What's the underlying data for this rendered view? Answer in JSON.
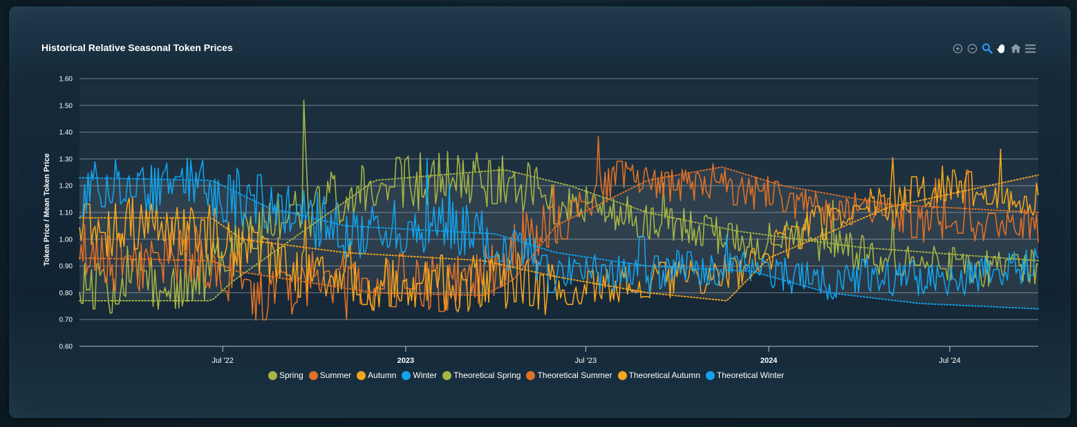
{
  "chart_title": "Historical Relative Seasonal Token Prices",
  "toolbar": {
    "icons": [
      "zoom-in-icon",
      "zoom-out-icon",
      "zoom-select-icon",
      "pan-icon",
      "home-icon",
      "menu-icon"
    ],
    "active_color": "#2e9bff",
    "inactive_color": "#8a9aa6"
  },
  "colors": {
    "spring": "#a6b545",
    "summer": "#e07126",
    "autumn": "#f2a51f",
    "winter": "#12a3ec"
  },
  "chart_data": {
    "type": "line",
    "title": "Historical Relative Seasonal Token Prices",
    "ylabel": "Token Price / Mean Token Price",
    "xlabel": "",
    "ylim": [
      0.6,
      1.6
    ],
    "yticks": [
      "1.60",
      "1.50",
      "1.40",
      "1.30",
      "1.20",
      "1.10",
      "1.00",
      "0.90",
      "0.80",
      "0.70",
      "0.60"
    ],
    "x_range": [
      "2022-02-07",
      "2024-09-28"
    ],
    "xticks": [
      {
        "label": "Jul '22",
        "date": "2022-07-01",
        "bold": false
      },
      {
        "label": "2023",
        "date": "2023-01-01",
        "bold": true
      },
      {
        "label": "Jul '23",
        "date": "2023-07-01",
        "bold": false
      },
      {
        "label": "2024",
        "date": "2024-01-01",
        "bold": true
      },
      {
        "label": "Jul '24",
        "date": "2024-07-01",
        "bold": false
      }
    ],
    "grid": true,
    "legend_position": "bottom",
    "series": [
      {
        "name": "Spring",
        "key": "spring",
        "style": "solid",
        "seed": 11,
        "points": [
          [
            "2022-02-07",
            0.86
          ],
          [
            "2022-03-01",
            0.8
          ],
          [
            "2022-04-01",
            0.88
          ],
          [
            "2022-05-01",
            0.82
          ],
          [
            "2022-06-01",
            0.85
          ],
          [
            "2022-07-01",
            0.92
          ],
          [
            "2022-08-01",
            1.02
          ],
          [
            "2022-09-01",
            1.08
          ],
          [
            "2022-10-01",
            1.12
          ],
          [
            "2022-11-01",
            1.18
          ],
          [
            "2022-12-01",
            1.17
          ],
          [
            "2023-01-01",
            1.21
          ],
          [
            "2023-02-01",
            1.22
          ],
          [
            "2023-03-01",
            1.24
          ],
          [
            "2023-04-01",
            1.21
          ],
          [
            "2023-05-01",
            1.2
          ],
          [
            "2023-06-01",
            1.14
          ],
          [
            "2023-07-01",
            1.13
          ],
          [
            "2023-08-01",
            1.1
          ],
          [
            "2023-09-01",
            1.06
          ],
          [
            "2023-10-01",
            1.05
          ],
          [
            "2023-11-01",
            1.03
          ],
          [
            "2023-12-01",
            0.99
          ],
          [
            "2024-01-01",
            0.99
          ],
          [
            "2024-02-01",
            1.03
          ],
          [
            "2024-03-01",
            0.97
          ],
          [
            "2024-04-01",
            0.95
          ],
          [
            "2024-05-01",
            0.93
          ],
          [
            "2024-06-01",
            0.92
          ],
          [
            "2024-07-01",
            0.9
          ],
          [
            "2024-08-01",
            0.89
          ],
          [
            "2024-09-28",
            0.9
          ]
        ]
      },
      {
        "name": "Summer",
        "key": "summer",
        "style": "solid",
        "seed": 23,
        "points": [
          [
            "2022-02-07",
            0.98
          ],
          [
            "2022-03-01",
            0.92
          ],
          [
            "2022-04-01",
            0.9
          ],
          [
            "2022-05-01",
            0.93
          ],
          [
            "2022-06-01",
            0.95
          ],
          [
            "2022-07-01",
            0.88
          ],
          [
            "2022-08-01",
            0.8
          ],
          [
            "2022-09-01",
            0.82
          ],
          [
            "2022-10-01",
            0.86
          ],
          [
            "2022-11-01",
            0.85
          ],
          [
            "2022-12-01",
            0.84
          ],
          [
            "2023-01-01",
            0.85
          ],
          [
            "2023-02-01",
            0.84
          ],
          [
            "2023-03-01",
            0.83
          ],
          [
            "2023-04-01",
            0.9
          ],
          [
            "2023-05-01",
            1.0
          ],
          [
            "2023-06-01",
            1.05
          ],
          [
            "2023-07-01",
            1.14
          ],
          [
            "2023-08-01",
            1.24
          ],
          [
            "2023-09-01",
            1.21
          ],
          [
            "2023-10-01",
            1.2
          ],
          [
            "2023-11-01",
            1.22
          ],
          [
            "2023-12-01",
            1.18
          ],
          [
            "2024-01-01",
            1.17
          ],
          [
            "2024-02-01",
            1.13
          ],
          [
            "2024-03-01",
            1.1
          ],
          [
            "2024-04-01",
            1.12
          ],
          [
            "2024-05-01",
            1.1
          ],
          [
            "2024-06-01",
            1.05
          ],
          [
            "2024-07-01",
            1.07
          ],
          [
            "2024-08-01",
            1.06
          ],
          [
            "2024-09-28",
            1.05
          ]
        ]
      },
      {
        "name": "Autumn",
        "key": "autumn",
        "style": "solid",
        "seed": 37,
        "points": [
          [
            "2022-02-07",
            1.1
          ],
          [
            "2022-03-01",
            1.04
          ],
          [
            "2022-04-01",
            1.06
          ],
          [
            "2022-05-01",
            1.03
          ],
          [
            "2022-06-01",
            1.05
          ],
          [
            "2022-07-01",
            1.0
          ],
          [
            "2022-08-01",
            0.94
          ],
          [
            "2022-09-01",
            0.9
          ],
          [
            "2022-10-01",
            0.86
          ],
          [
            "2022-11-01",
            0.85
          ],
          [
            "2022-12-01",
            0.84
          ],
          [
            "2023-01-01",
            0.86
          ],
          [
            "2023-02-01",
            0.84
          ],
          [
            "2023-03-01",
            0.82
          ],
          [
            "2023-04-01",
            0.85
          ],
          [
            "2023-05-01",
            0.84
          ],
          [
            "2023-06-01",
            0.82
          ],
          [
            "2023-07-01",
            0.83
          ],
          [
            "2023-08-01",
            0.82
          ],
          [
            "2023-09-01",
            0.84
          ],
          [
            "2023-10-01",
            0.85
          ],
          [
            "2023-11-01",
            0.86
          ],
          [
            "2023-12-01",
            0.88
          ],
          [
            "2024-01-01",
            0.95
          ],
          [
            "2024-02-01",
            1.02
          ],
          [
            "2024-03-01",
            1.08
          ],
          [
            "2024-04-01",
            1.12
          ],
          [
            "2024-05-01",
            1.14
          ],
          [
            "2024-06-01",
            1.18
          ],
          [
            "2024-07-01",
            1.2
          ],
          [
            "2024-08-01",
            1.19
          ],
          [
            "2024-09-28",
            1.15
          ]
        ]
      },
      {
        "name": "Winter",
        "key": "winter",
        "style": "solid",
        "seed": 53,
        "points": [
          [
            "2022-02-07",
            1.14
          ],
          [
            "2022-03-01",
            1.22
          ],
          [
            "2022-04-01",
            1.21
          ],
          [
            "2022-05-01",
            1.19
          ],
          [
            "2022-06-01",
            1.2
          ],
          [
            "2022-07-01",
            1.16
          ],
          [
            "2022-08-01",
            1.15
          ],
          [
            "2022-09-01",
            1.13
          ],
          [
            "2022-10-01",
            1.07
          ],
          [
            "2022-11-01",
            1.03
          ],
          [
            "2022-12-01",
            1.04
          ],
          [
            "2023-01-01",
            1.05
          ],
          [
            "2023-02-01",
            1.06
          ],
          [
            "2023-03-01",
            1.04
          ],
          [
            "2023-04-01",
            0.98
          ],
          [
            "2023-05-01",
            0.93
          ],
          [
            "2023-06-01",
            0.89
          ],
          [
            "2023-07-01",
            0.88
          ],
          [
            "2023-08-01",
            0.87
          ],
          [
            "2023-09-01",
            0.86
          ],
          [
            "2023-10-01",
            0.9
          ],
          [
            "2023-11-01",
            0.88
          ],
          [
            "2023-12-01",
            0.9
          ],
          [
            "2024-01-01",
            0.88
          ],
          [
            "2024-02-01",
            0.86
          ],
          [
            "2024-03-01",
            0.84
          ],
          [
            "2024-04-01",
            0.87
          ],
          [
            "2024-05-01",
            0.85
          ],
          [
            "2024-06-01",
            0.86
          ],
          [
            "2024-07-01",
            0.85
          ],
          [
            "2024-08-01",
            0.87
          ],
          [
            "2024-09-28",
            0.9
          ]
        ]
      },
      {
        "name": "Theoretical Spring",
        "key": "spring",
        "style": "dotted",
        "points": [
          [
            "2022-02-07",
            0.77
          ],
          [
            "2022-06-20",
            0.77
          ],
          [
            "2022-07-10",
            0.84
          ],
          [
            "2022-12-01",
            1.22
          ],
          [
            "2023-04-10",
            1.26
          ],
          [
            "2023-06-15",
            1.2
          ],
          [
            "2023-09-01",
            1.1
          ],
          [
            "2023-12-01",
            1.03
          ],
          [
            "2024-04-01",
            0.97
          ],
          [
            "2024-09-28",
            0.92
          ]
        ]
      },
      {
        "name": "Theoretical Summer",
        "key": "summer",
        "style": "dotted",
        "points": [
          [
            "2022-02-07",
            0.93
          ],
          [
            "2022-06-20",
            0.92
          ],
          [
            "2022-07-15",
            0.88
          ],
          [
            "2022-12-01",
            0.8
          ],
          [
            "2023-03-20",
            0.79
          ],
          [
            "2023-04-20",
            0.85
          ],
          [
            "2023-06-01",
            1.05
          ],
          [
            "2023-09-01",
            1.22
          ],
          [
            "2023-11-15",
            1.27
          ],
          [
            "2024-01-15",
            1.2
          ],
          [
            "2024-05-01",
            1.13
          ],
          [
            "2024-09-28",
            1.1
          ]
        ]
      },
      {
        "name": "Theoretical Autumn",
        "key": "autumn",
        "style": "dotted",
        "points": [
          [
            "2022-02-07",
            1.08
          ],
          [
            "2022-06-20",
            1.08
          ],
          [
            "2022-07-20",
            1.0
          ],
          [
            "2022-11-01",
            0.95
          ],
          [
            "2023-03-20",
            0.92
          ],
          [
            "2023-06-01",
            0.86
          ],
          [
            "2023-09-01",
            0.8
          ],
          [
            "2023-11-20",
            0.77
          ],
          [
            "2024-01-01",
            0.93
          ],
          [
            "2024-05-01",
            1.12
          ],
          [
            "2024-09-28",
            1.24
          ]
        ]
      },
      {
        "name": "Theoretical Winter",
        "key": "winter",
        "style": "dotted",
        "points": [
          [
            "2022-02-07",
            1.23
          ],
          [
            "2022-06-20",
            1.22
          ],
          [
            "2022-08-15",
            1.12
          ],
          [
            "2022-11-01",
            1.05
          ],
          [
            "2023-04-01",
            1.02
          ],
          [
            "2023-06-01",
            0.95
          ],
          [
            "2023-09-01",
            0.9
          ],
          [
            "2023-12-15",
            0.88
          ],
          [
            "2024-03-01",
            0.8
          ],
          [
            "2024-06-01",
            0.76
          ],
          [
            "2024-09-28",
            0.74
          ]
        ]
      }
    ]
  }
}
